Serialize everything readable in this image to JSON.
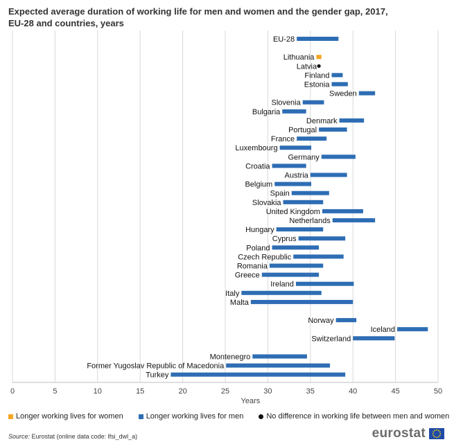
{
  "title": "Expected average duration of working life for men and women and the gender gap, 2017, EU-28 and countries, years",
  "colors": {
    "men": "#2e6db4",
    "women": "#f5a623",
    "nodiff": "#111111",
    "grid": "#d9d9d9",
    "eu_blue": "#1f4aa8",
    "eu_star": "#ffde00"
  },
  "legend": {
    "women": "Longer working lives for women",
    "men": "Longer working lives for men",
    "nodiff": "No difference in working life between men and women"
  },
  "source": {
    "label": "Source:",
    "text": "Eurostat (online data code: lfsi_dwl_a)"
  },
  "logo": {
    "text": "eurostat",
    "icon": "eu-flag-icon"
  },
  "chart_data": {
    "type": "bar",
    "subtype": "range (dumbbell-style) bars from women's to men's expected working life",
    "xlabel": "Years",
    "xlim": [
      0,
      50
    ],
    "xticks": [
      0,
      5,
      10,
      15,
      20,
      25,
      30,
      35,
      40,
      45,
      50
    ],
    "grid": "vertical",
    "legend_position": "bottom",
    "rows": [
      {
        "label": "EU-28",
        "start": 33.4,
        "end": 38.3,
        "type": "men"
      },
      {
        "gap": true
      },
      {
        "label": "Lithuania",
        "start": 35.7,
        "end": 36.3,
        "type": "women"
      },
      {
        "label": "Latvia",
        "start": 36.0,
        "end": 36.0,
        "type": "nodiff"
      },
      {
        "label": "Finland",
        "start": 37.5,
        "end": 38.8,
        "type": "men"
      },
      {
        "label": "Estonia",
        "start": 37.5,
        "end": 39.4,
        "type": "men"
      },
      {
        "label": "Sweden",
        "start": 40.7,
        "end": 42.6,
        "type": "men"
      },
      {
        "label": "Slovenia",
        "start": 34.1,
        "end": 36.6,
        "type": "men"
      },
      {
        "label": "Bulgaria",
        "start": 31.7,
        "end": 34.5,
        "type": "men"
      },
      {
        "label": "Denmark",
        "start": 38.4,
        "end": 41.3,
        "type": "men"
      },
      {
        "label": "Portugal",
        "start": 36.0,
        "end": 39.3,
        "type": "men"
      },
      {
        "label": "France",
        "start": 33.4,
        "end": 36.9,
        "type": "men"
      },
      {
        "label": "Luxembourg",
        "start": 31.4,
        "end": 35.1,
        "type": "men"
      },
      {
        "label": "Germany",
        "start": 36.3,
        "end": 40.3,
        "type": "men"
      },
      {
        "label": "Croatia",
        "start": 30.5,
        "end": 34.5,
        "type": "men"
      },
      {
        "label": "Austria",
        "start": 35.0,
        "end": 39.3,
        "type": "men"
      },
      {
        "label": "Belgium",
        "start": 30.8,
        "end": 35.1,
        "type": "men"
      },
      {
        "label": "Spain",
        "start": 32.8,
        "end": 37.2,
        "type": "men"
      },
      {
        "label": "Slovakia",
        "start": 31.8,
        "end": 36.5,
        "type": "men"
      },
      {
        "label": "United Kingdom",
        "start": 36.4,
        "end": 41.2,
        "type": "men"
      },
      {
        "label": "Netherlands",
        "start": 37.6,
        "end": 42.6,
        "type": "men"
      },
      {
        "label": "Hungary",
        "start": 31.0,
        "end": 36.5,
        "type": "men"
      },
      {
        "label": "Cyprus",
        "start": 33.6,
        "end": 39.1,
        "type": "men"
      },
      {
        "label": "Poland",
        "start": 30.5,
        "end": 36.0,
        "type": "men"
      },
      {
        "label": "Czech Republic",
        "start": 33.0,
        "end": 38.9,
        "type": "men"
      },
      {
        "label": "Romania",
        "start": 30.2,
        "end": 36.5,
        "type": "men"
      },
      {
        "label": "Greece",
        "start": 29.3,
        "end": 36.0,
        "type": "men"
      },
      {
        "label": "Ireland",
        "start": 33.3,
        "end": 40.1,
        "type": "men"
      },
      {
        "label": "Italy",
        "start": 26.9,
        "end": 36.3,
        "type": "men"
      },
      {
        "label": "Malta",
        "start": 28.0,
        "end": 40.0,
        "type": "men"
      },
      {
        "gap": true
      },
      {
        "label": "Norway",
        "start": 38.0,
        "end": 40.4,
        "type": "men"
      },
      {
        "label": "Iceland",
        "start": 45.2,
        "end": 48.8,
        "type": "men"
      },
      {
        "label": "Switzerland",
        "start": 40.0,
        "end": 44.9,
        "type": "men"
      },
      {
        "gap": true
      },
      {
        "label": "Montenegro",
        "start": 28.2,
        "end": 34.6,
        "type": "men"
      },
      {
        "label": "Former Yugoslav Republic of Macedonia",
        "start": 25.1,
        "end": 37.3,
        "type": "men"
      },
      {
        "label": "Turkey",
        "start": 18.6,
        "end": 39.1,
        "type": "men"
      }
    ]
  }
}
